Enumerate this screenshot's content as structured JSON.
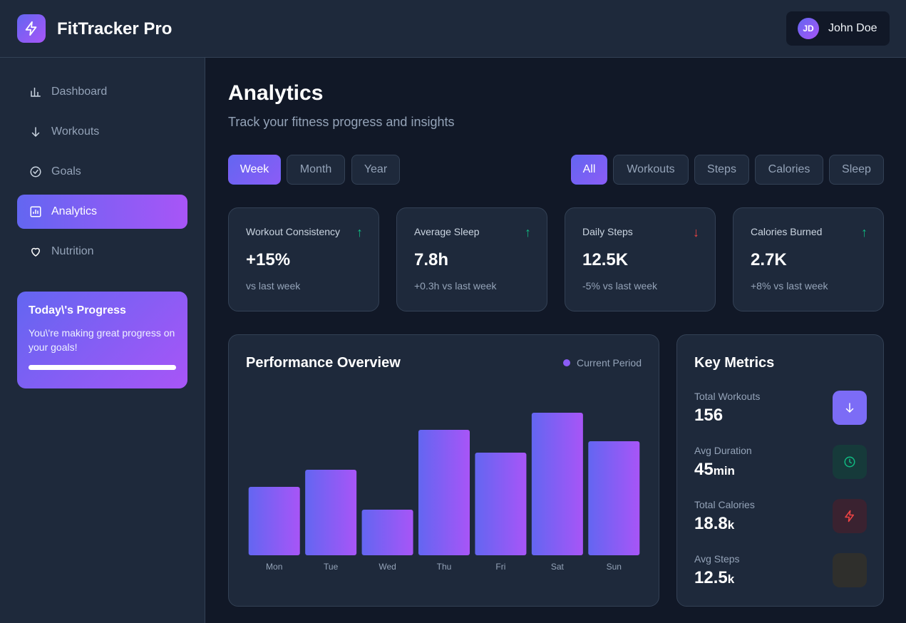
{
  "header": {
    "brand": "FitTracker Pro",
    "logo_icon": "lightning-icon",
    "user": {
      "initials": "JD",
      "name": "John Doe"
    }
  },
  "sidebar": {
    "items": [
      {
        "label": "Dashboard",
        "icon": "bar-chart-icon",
        "active": false
      },
      {
        "label": "Workouts",
        "icon": "arrow-down-icon",
        "active": false
      },
      {
        "label": "Goals",
        "icon": "check-circle-icon",
        "active": false
      },
      {
        "label": "Analytics",
        "icon": "analytics-icon",
        "active": true
      },
      {
        "label": "Nutrition",
        "icon": "heart-icon",
        "active": false
      }
    ],
    "progress": {
      "title": "Today\\'s Progress",
      "text": "You\\'re making great progress on your goals!",
      "level": 1.0
    }
  },
  "page": {
    "title": "Analytics",
    "subtitle": "Track your fitness progress and insights"
  },
  "time_filters": [
    {
      "label": "Week",
      "active": true
    },
    {
      "label": "Month",
      "active": false
    },
    {
      "label": "Year",
      "active": false
    }
  ],
  "category_filters": [
    {
      "label": "All",
      "active": true
    },
    {
      "label": "Workouts",
      "active": false
    },
    {
      "label": "Steps",
      "active": false
    },
    {
      "label": "Calories",
      "active": false
    },
    {
      "label": "Sleep",
      "active": false
    }
  ],
  "stats": [
    {
      "label": "Workout Consistency",
      "value": "+15%",
      "sub": "vs last week",
      "trend": "↑",
      "direction": "up"
    },
    {
      "label": "Average Sleep",
      "value": "7.8h",
      "sub": "+0.3h vs last week",
      "trend": "↑",
      "direction": "up"
    },
    {
      "label": "Daily Steps",
      "value": "12.5K",
      "sub": "-5% vs last week",
      "trend": "↓",
      "direction": "down"
    },
    {
      "label": "Calories Burned",
      "value": "2.7K",
      "sub": "+8% vs last week",
      "trend": "↑",
      "direction": "up"
    }
  ],
  "performance": {
    "title": "Performance Overview",
    "legend": "Current Period"
  },
  "chart_data": {
    "type": "bar",
    "title": "Performance Overview",
    "categories": [
      "Mon",
      "Tue",
      "Wed",
      "Thu",
      "Fri",
      "Sat",
      "Sun"
    ],
    "series": [
      {
        "name": "Current Period",
        "values": [
          48,
          60,
          32,
          88,
          72,
          100,
          80
        ]
      }
    ],
    "ylim": [
      0,
      100
    ],
    "grid": false,
    "legend_position": "top-right",
    "colors": [
      "#6366f1",
      "#a855f7"
    ]
  },
  "key_metrics": {
    "title": "Key Metrics",
    "items": [
      {
        "label": "Total Workouts",
        "value": "156",
        "unit": "",
        "icon": "arrow-down-icon",
        "icon_bg": "#7c6cf6",
        "icon_color": "#ffffff"
      },
      {
        "label": "Avg Duration",
        "value": "45",
        "unit": "min",
        "icon": "clock-icon",
        "icon_bg": "#163a3a",
        "icon_color": "#10b981"
      },
      {
        "label": "Total Calories",
        "value": "18.8",
        "unit": "k",
        "icon": "lightning-icon",
        "icon_bg": "#3a2230",
        "icon_color": "#ef4444"
      },
      {
        "label": "Avg Steps",
        "value": "12.5",
        "unit": "k",
        "icon": "blank-icon",
        "icon_bg": "#2f2f2c",
        "icon_color": "#f59e0b"
      }
    ]
  }
}
